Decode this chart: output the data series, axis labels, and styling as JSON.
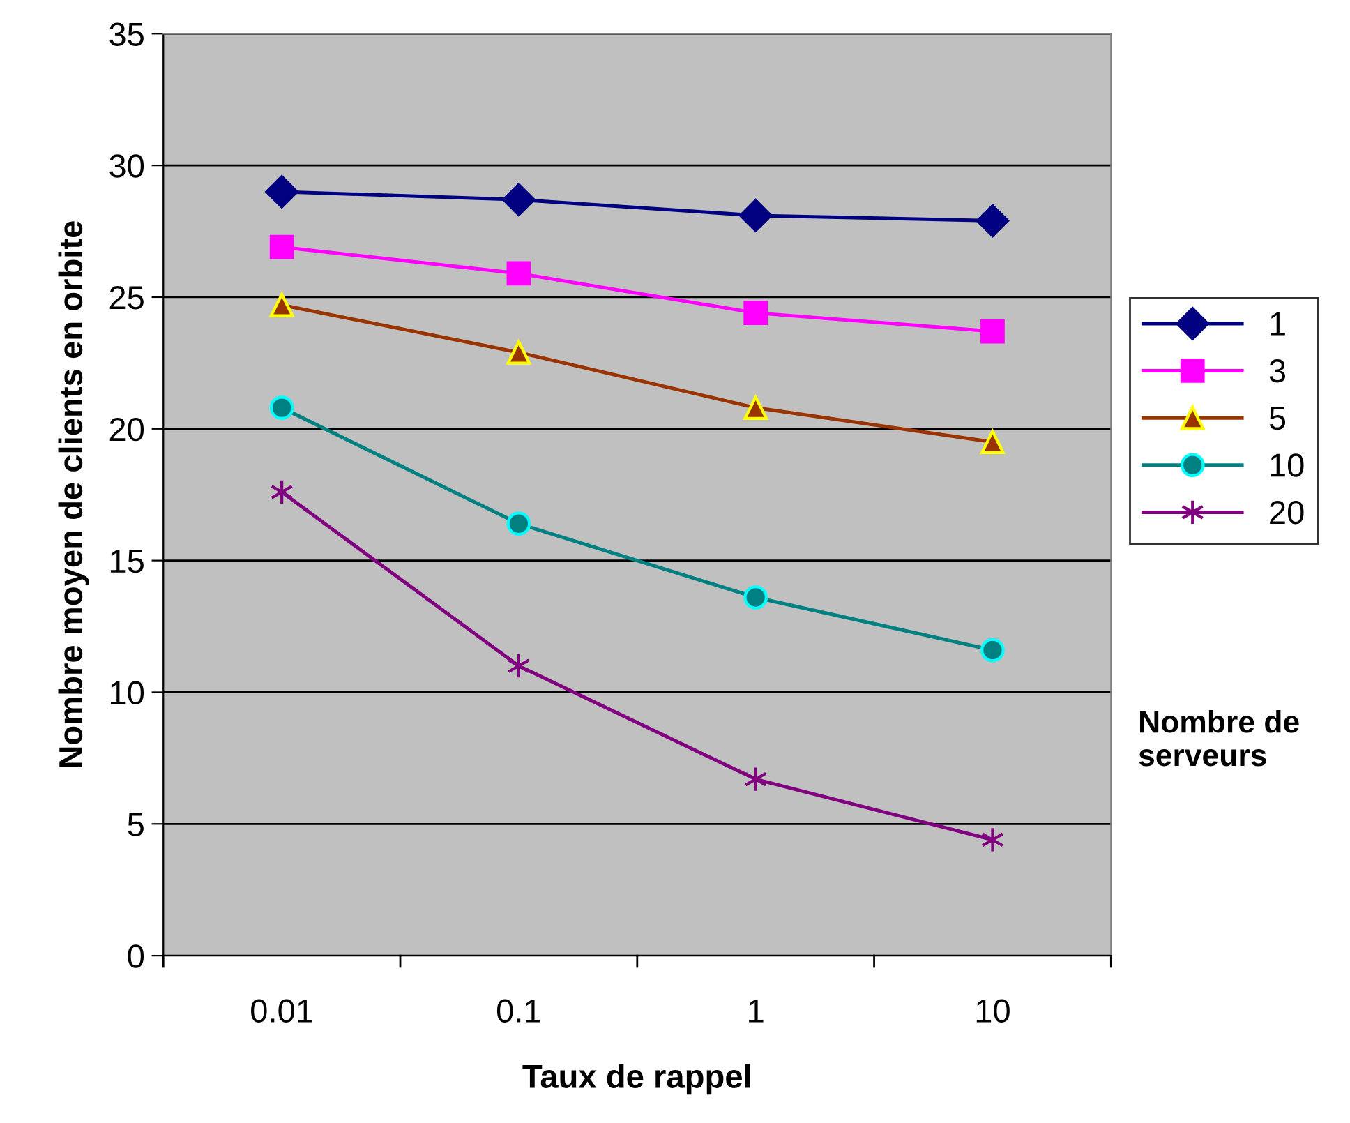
{
  "chart_data": {
    "type": "line",
    "xlabel": "Taux de rappel",
    "ylabel": "Nombre moyen de clients en orbite",
    "legend_title": "Nombre de serveurs",
    "categories": [
      "0.01",
      "0.1",
      "1",
      "10"
    ],
    "ylim": [
      0,
      35
    ],
    "yticks": [
      0,
      5,
      10,
      15,
      20,
      25,
      30,
      35
    ],
    "grid": "y",
    "legend": "right",
    "series": [
      {
        "name": "1",
        "color": "#000080",
        "marker": "diamond",
        "values": [
          29.0,
          28.7,
          28.1,
          27.9
        ]
      },
      {
        "name": "3",
        "color": "#ff00ff",
        "marker": "square",
        "values": [
          26.9,
          25.9,
          24.4,
          23.7
        ]
      },
      {
        "name": "5",
        "color": "#993300",
        "marker": "triangle",
        "values": [
          24.7,
          22.9,
          20.8,
          19.5
        ]
      },
      {
        "name": "10",
        "color": "#008080",
        "marker": "circle",
        "values": [
          20.8,
          16.4,
          13.6,
          11.6
        ]
      },
      {
        "name": "20",
        "color": "#800080",
        "marker": "cross",
        "values": [
          17.6,
          11.0,
          6.7,
          4.4
        ]
      }
    ]
  }
}
